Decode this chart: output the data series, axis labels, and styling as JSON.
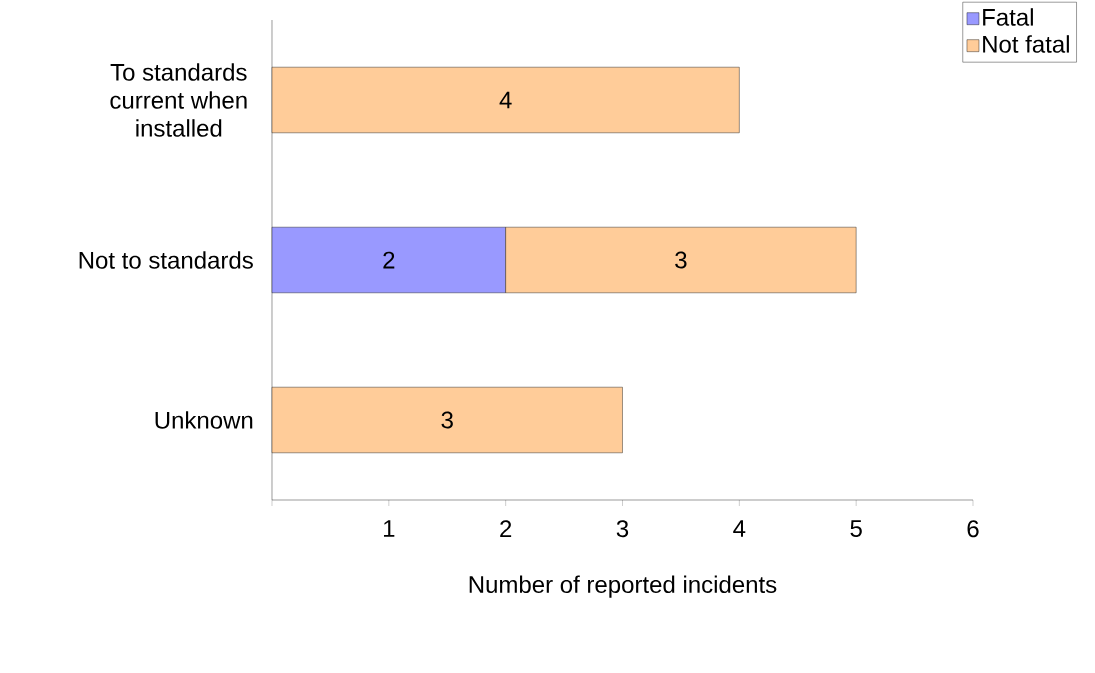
{
  "chart_data": {
    "type": "bar",
    "orientation": "horizontal",
    "stacked": true,
    "categories": [
      "To standards current when installed",
      "Not to standards",
      "Unknown"
    ],
    "series": [
      {
        "name": "Fatal",
        "color": "#9999ff",
        "values": [
          null,
          2,
          null
        ]
      },
      {
        "name": "Not fatal",
        "color": "#ffcc99",
        "values": [
          4,
          3,
          3
        ]
      }
    ],
    "xlabel": "Number of reported incidents",
    "xlim": [
      0,
      6
    ],
    "xticks": [
      {
        "value": 0,
        "label": null
      },
      1,
      2,
      3,
      4,
      5,
      6
    ],
    "data_labels": true,
    "legend": "top right",
    "grid": false
  }
}
